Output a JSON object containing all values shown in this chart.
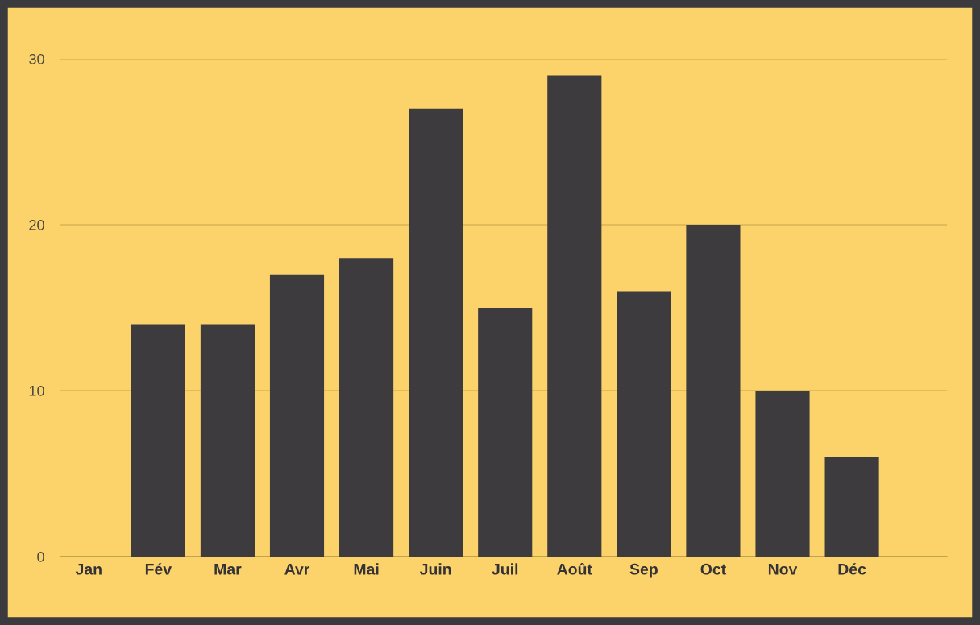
{
  "chart_data": {
    "type": "bar",
    "categories": [
      "Jan",
      "Fév",
      "Mar",
      "Avr",
      "Mai",
      "Juin",
      "Juil",
      "Août",
      "Sep",
      "Oct",
      "Nov",
      "Déc"
    ],
    "values": [
      0,
      14,
      14,
      17,
      18,
      27,
      15,
      29,
      16,
      20,
      10,
      6
    ],
    "color": "#3d3b3e",
    "ylim": [
      0,
      30
    ],
    "yticks": [
      0,
      10,
      20,
      30
    ],
    "grid": "y"
  }
}
